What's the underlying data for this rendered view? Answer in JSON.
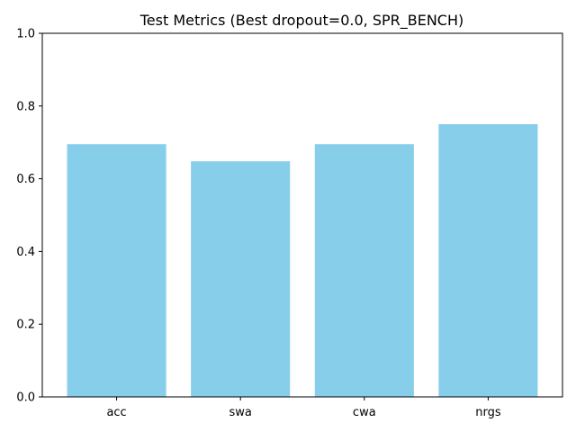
{
  "chart_data": {
    "type": "bar",
    "title": "Test Metrics (Best dropout=0.0, SPR_BENCH)",
    "xlabel": "",
    "ylabel": "",
    "categories": [
      "acc",
      "swa",
      "cwa",
      "nrgs"
    ],
    "values": [
      0.695,
      0.648,
      0.695,
      0.75
    ],
    "ylim": [
      0,
      1
    ],
    "yticks": [
      "0.0",
      "0.2",
      "0.4",
      "0.6",
      "0.8",
      "1.0"
    ],
    "bar_color": "#87ceeb",
    "grid": false,
    "legend": "none"
  }
}
